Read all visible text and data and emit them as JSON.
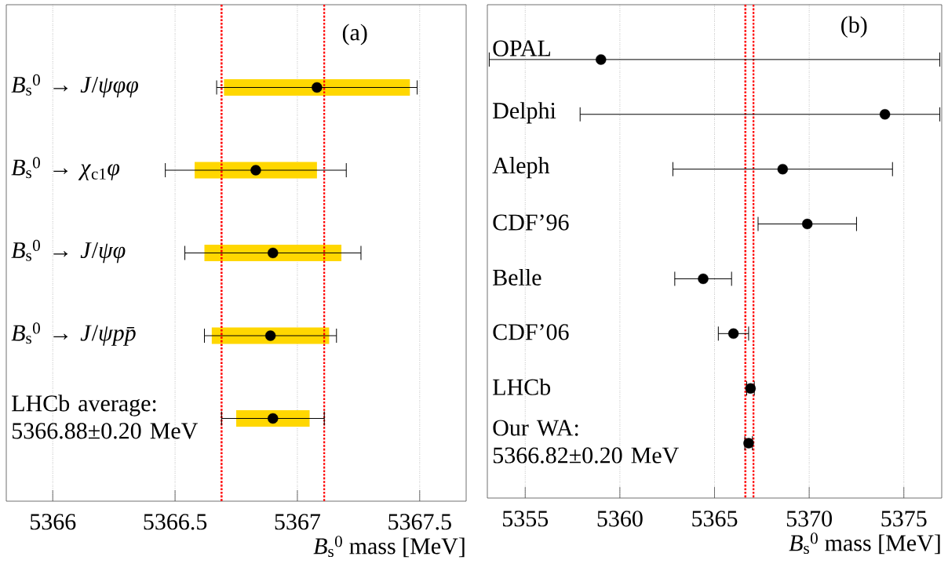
{
  "chart_data": [
    {
      "type": "scatter",
      "title": "(a)",
      "orientation": "horizontal",
      "categories": [
        "*B*$_{s}$$^{0}$ → *J*/*ψφφ*",
        "*B*$_{s}$$^{0}$ → *χ*$_{c1}$*φ*",
        "*B*$_{s}$$^{0}$ → *J*/*ψφ*",
        "*B*$_{s}$$^{0}$ → *J*/*ψpp̄*",
        "LHCb average: 5366.88±0.20 MeV"
      ],
      "series": [
        {
          "type": "bar",
          "color": "#ffd700",
          "base": [
            5366.7,
            5366.58,
            5366.62,
            5366.65,
            5366.75
          ],
          "values": [
            0.76,
            0.5,
            0.56,
            0.48,
            0.3
          ]
        },
        {
          "color": "#000000",
          "values": [
            5367.08,
            5366.83,
            5366.9,
            5366.89,
            5366.9
          ],
          "errors": [
            0.41,
            0.37,
            0.36,
            0.27,
            0.21
          ]
        }
      ],
      "xlabel": "*B*$_{s}$$^{0}$ mass [MeV]",
      "xlim": [
        5365.81,
        5367.69
      ],
      "xticks": [
        5366,
        5366.5,
        5367,
        5367.5
      ],
      "grid": "x",
      "marker": "circle",
      "ref_lines": [
        {
          "axis": "x",
          "value": 5366.69,
          "color": "#ff0000",
          "line_style": "dotted"
        },
        {
          "axis": "x",
          "value": 5367.11,
          "color": "#ff0000",
          "line_style": "dotted"
        }
      ]
    },
    {
      "type": "scatter",
      "title": "(b)",
      "orientation": "horizontal",
      "categories": [
        "OPAL",
        "Delphi",
        "Aleph",
        "CDF’96",
        "Belle",
        "CDF’06",
        "LHCb",
        "Our WA: 5366.82±0.20 MeV"
      ],
      "series": [
        {
          "color": "#000000",
          "values": [
            5359,
            5374,
            5368.6,
            5369.9,
            5364.4,
            5366.0,
            5366.9,
            5366.8
          ],
          "errors": [
            [
              5353.1,
              5376.9
            ],
            [
              5357.9,
              5376.9
            ],
            5.8,
            2.6,
            1.5,
            0.8,
            0.2,
            0.2
          ]
        }
      ],
      "xlabel": "*B*$_{s}$$^{0}$ mass [MeV]",
      "xlim": [
        5353,
        5377
      ],
      "xticks": [
        5355,
        5360,
        5365,
        5370,
        5375
      ],
      "grid": "x",
      "marker": "circle",
      "ref_lines": [
        {
          "axis": "x",
          "value": 5366.63,
          "color": "#ff0000",
          "line_style": "dotted"
        },
        {
          "axis": "x",
          "value": 5367.06,
          "color": "#ff0000",
          "line_style": "dotted"
        }
      ]
    }
  ]
}
